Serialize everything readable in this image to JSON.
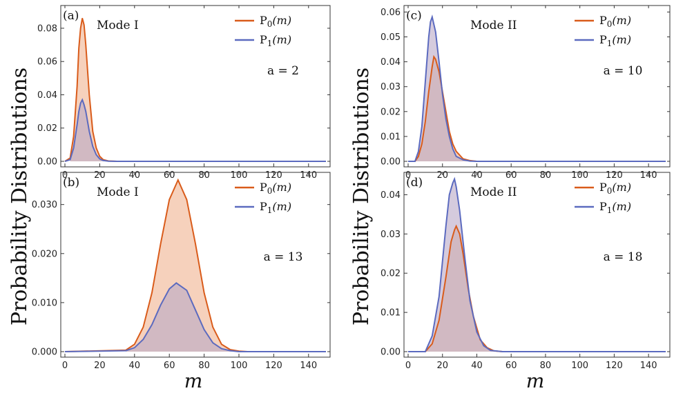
{
  "figure": {
    "ylabel": "Probability Distributions",
    "xlabel": "m"
  },
  "chart_data": [
    {
      "type": "area",
      "panel": "(a)",
      "mode": "Mode I",
      "param": "a = 2",
      "xlim": [
        0,
        150
      ],
      "ylim": [
        0,
        0.092
      ],
      "xticks": [
        0,
        20,
        40,
        60,
        80,
        100,
        120,
        140
      ],
      "yticks": [
        0.0,
        0.02,
        0.04,
        0.06,
        0.08
      ],
      "ytick_labels": [
        "0.00",
        "0.02",
        "0.04",
        "0.06",
        "0.08"
      ],
      "series": [
        {
          "name": "P₀(m)",
          "label_base": "P",
          "label_sub": "0",
          "label_arg": "(m)",
          "color": "#d95b1a",
          "fill": "#f3c2a5",
          "x": [
            3,
            5,
            7,
            8,
            9,
            10,
            11,
            12,
            13,
            14,
            16,
            18,
            20,
            22,
            25,
            30
          ],
          "y": [
            0.002,
            0.015,
            0.045,
            0.068,
            0.08,
            0.086,
            0.082,
            0.07,
            0.055,
            0.04,
            0.018,
            0.008,
            0.003,
            0.001,
            0.0002,
            0.0
          ]
        },
        {
          "name": "P₁(m)",
          "label_base": "P",
          "label_sub": "1",
          "label_arg": "(m)",
          "color": "#5b6abf",
          "fill": "#b9a8c6",
          "x": [
            3,
            5,
            7,
            8,
            9,
            10,
            11,
            12,
            13,
            14,
            16,
            18,
            20,
            22,
            25,
            30
          ],
          "y": [
            0.001,
            0.008,
            0.022,
            0.03,
            0.035,
            0.037,
            0.034,
            0.03,
            0.024,
            0.018,
            0.009,
            0.004,
            0.0015,
            0.0005,
            0.0001,
            0.0
          ]
        }
      ]
    },
    {
      "type": "area",
      "panel": "(c)",
      "mode": "Mode II",
      "param": "a = 10",
      "xlim": [
        0,
        150
      ],
      "ylim": [
        0,
        0.0615
      ],
      "xticks": [
        0,
        20,
        40,
        60,
        80,
        100,
        120,
        140
      ],
      "yticks": [
        0.0,
        0.01,
        0.02,
        0.03,
        0.04,
        0.05,
        0.06
      ],
      "ytick_labels": [
        "0.00",
        "0.01",
        "0.02",
        "0.03",
        "0.04",
        "0.05",
        "0.06"
      ],
      "series": [
        {
          "name": "P₀(m)",
          "label_base": "P",
          "label_sub": "0",
          "label_arg": "(m)",
          "color": "#d95b1a",
          "fill": "#f3c2a5",
          "x": [
            4,
            6,
            8,
            10,
            12,
            14,
            15,
            16,
            18,
            20,
            22,
            24,
            26,
            28,
            32,
            36,
            40
          ],
          "y": [
            0.0,
            0.002,
            0.007,
            0.016,
            0.028,
            0.038,
            0.042,
            0.041,
            0.036,
            0.028,
            0.02,
            0.012,
            0.007,
            0.004,
            0.001,
            0.0003,
            0.0
          ]
        },
        {
          "name": "P₁(m)",
          "label_base": "P",
          "label_sub": "1",
          "label_arg": "(m)",
          "color": "#5b6abf",
          "fill": "#b9a8c6",
          "x": [
            4,
            6,
            8,
            10,
            12,
            13,
            14,
            16,
            18,
            20,
            22,
            24,
            26,
            28,
            32,
            36,
            40
          ],
          "y": [
            0.0,
            0.004,
            0.014,
            0.032,
            0.05,
            0.056,
            0.058,
            0.052,
            0.04,
            0.027,
            0.017,
            0.01,
            0.005,
            0.002,
            0.0006,
            0.0001,
            0.0
          ]
        }
      ]
    },
    {
      "type": "area",
      "panel": "(b)",
      "mode": "Mode I",
      "param": "a = 13",
      "xlim": [
        0,
        150
      ],
      "ylim": [
        0,
        0.036
      ],
      "xticks": [
        0,
        20,
        40,
        60,
        80,
        100,
        120,
        140
      ],
      "yticks": [
        0.0,
        0.01,
        0.02,
        0.03
      ],
      "ytick_labels": [
        "0.000",
        "0.010",
        "0.020",
        "0.030"
      ],
      "series": [
        {
          "name": "P₀(m)",
          "label_base": "P",
          "label_sub": "0",
          "label_arg": "(m)",
          "color": "#d95b1a",
          "fill": "#f3c2a5",
          "x": [
            35,
            40,
            45,
            50,
            55,
            60,
            65,
            70,
            75,
            80,
            85,
            90,
            95,
            100,
            105
          ],
          "y": [
            0.0003,
            0.0015,
            0.005,
            0.012,
            0.022,
            0.031,
            0.035,
            0.031,
            0.022,
            0.012,
            0.005,
            0.0015,
            0.0004,
            0.0001,
            0.0
          ]
        },
        {
          "name": "P₁(m)",
          "label_base": "P",
          "label_sub": "1",
          "label_arg": "(m)",
          "color": "#5b6abf",
          "fill": "#b9a8c6",
          "x": [
            35,
            40,
            45,
            50,
            55,
            60,
            64,
            70,
            75,
            80,
            85,
            90,
            95,
            100,
            105
          ],
          "y": [
            0.0002,
            0.0008,
            0.0025,
            0.0055,
            0.0095,
            0.0128,
            0.014,
            0.0125,
            0.0085,
            0.0045,
            0.0018,
            0.0006,
            0.0002,
            0.0,
            0.0
          ]
        }
      ]
    },
    {
      "type": "area",
      "panel": "(d)",
      "mode": "Mode II",
      "param": "a = 18",
      "xlim": [
        0,
        150
      ],
      "ylim": [
        0,
        0.045
      ],
      "xticks": [
        0,
        20,
        40,
        60,
        80,
        100,
        120,
        140
      ],
      "yticks": [
        0.0,
        0.01,
        0.02,
        0.03,
        0.04
      ],
      "ytick_labels": [
        "0.00",
        "0.01",
        "0.02",
        "0.03",
        "0.04"
      ],
      "series": [
        {
          "name": "P₀(m)",
          "label_base": "P",
          "label_sub": "0",
          "label_arg": "(m)",
          "color": "#d95b1a",
          "fill": "#f3c2a5",
          "x": [
            10,
            14,
            18,
            22,
            25,
            27,
            28,
            30,
            32,
            35,
            38,
            42,
            46,
            50,
            55
          ],
          "y": [
            0.0,
            0.002,
            0.008,
            0.019,
            0.028,
            0.031,
            0.032,
            0.03,
            0.025,
            0.016,
            0.009,
            0.003,
            0.001,
            0.0002,
            0.0
          ]
        },
        {
          "name": "P₁(m)",
          "label_base": "P",
          "label_sub": "1",
          "label_arg": "(m)",
          "color": "#5b6abf",
          "fill": "#b9a8c6",
          "x": [
            10,
            14,
            18,
            22,
            24,
            26,
            27,
            28,
            30,
            33,
            36,
            40,
            44,
            48,
            55
          ],
          "y": [
            0.0,
            0.004,
            0.014,
            0.032,
            0.04,
            0.043,
            0.044,
            0.042,
            0.036,
            0.024,
            0.013,
            0.005,
            0.0015,
            0.0003,
            0.0
          ]
        }
      ]
    }
  ]
}
